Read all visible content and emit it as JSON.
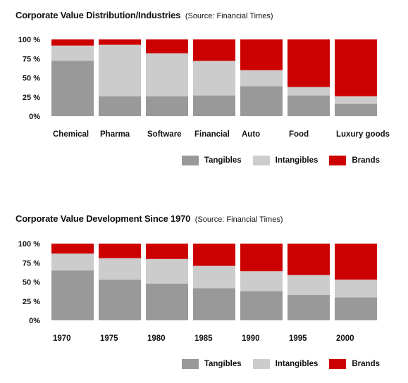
{
  "colors": {
    "Tangibles": "#999999",
    "Intangibles": "#cccccc",
    "Brands": "#cc0000"
  },
  "chart_data": [
    {
      "type": "bar",
      "stacked": true,
      "title": "Corporate Value Distribution/Industries",
      "source": "(Source: Financial Times)",
      "y_ticks": [
        "100 %",
        "75 %",
        "50 %",
        "25 %",
        "0%"
      ],
      "ylim": [
        0,
        100
      ],
      "categories": [
        "Chemical",
        "Pharma",
        "Software",
        "Financial",
        "Auto",
        "Food",
        "Luxury goods"
      ],
      "series": [
        {
          "name": "Tangibles",
          "values": [
            72,
            26,
            26,
            27,
            39,
            27,
            16
          ]
        },
        {
          "name": "Intangibles",
          "values": [
            20,
            67,
            56,
            45,
            21,
            11,
            10
          ]
        },
        {
          "name": "Brands",
          "values": [
            8,
            7,
            18,
            28,
            40,
            62,
            74
          ]
        }
      ],
      "legend": [
        "Tangibles",
        "Intangibles",
        "Brands"
      ],
      "legend_position": "bottom-right",
      "grid": false
    },
    {
      "type": "bar",
      "stacked": true,
      "title": "Corporate Value Development Since 1970",
      "source": "(Source: Financial Times)",
      "y_ticks": [
        "100 %",
        "75 %",
        "50 %",
        "25 %",
        "0%"
      ],
      "ylim": [
        0,
        100
      ],
      "categories": [
        "1970",
        "1975",
        "1980",
        "1985",
        "1990",
        "1995",
        "2000"
      ],
      "series": [
        {
          "name": "Tangibles",
          "values": [
            65,
            53,
            48,
            42,
            38,
            33,
            30
          ]
        },
        {
          "name": "Intangibles",
          "values": [
            22,
            28,
            32,
            29,
            26,
            26,
            23
          ]
        },
        {
          "name": "Brands",
          "values": [
            13,
            19,
            20,
            29,
            36,
            41,
            47
          ]
        }
      ],
      "legend": [
        "Tangibles",
        "Intangibles",
        "Brands"
      ],
      "legend_position": "bottom-right",
      "grid": false
    }
  ]
}
